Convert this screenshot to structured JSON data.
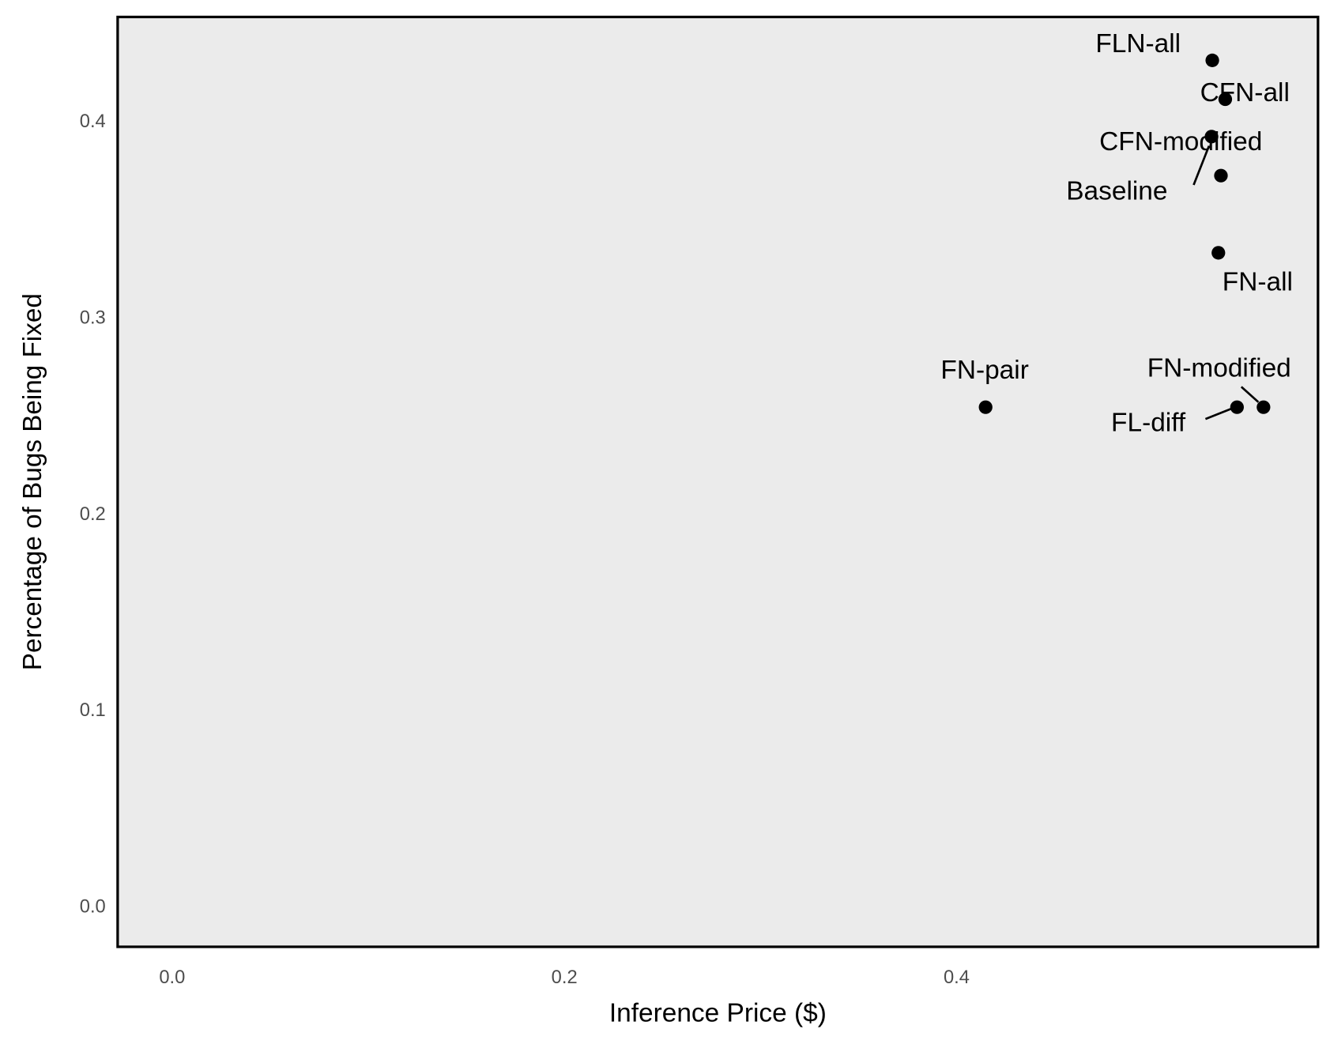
{
  "chart_data": {
    "type": "scatter",
    "x_label": "Inference Price ($)",
    "y_label": "Percentage of Bugs Being Fixed",
    "labels": [
      "FLN-all",
      "CFN-all",
      "CFN-modified",
      "Baseline",
      "FN-all",
      "FN-pair",
      "FL-diff",
      "FN-modified"
    ],
    "x": [
      0.5304,
      0.537,
      0.53,
      0.5348,
      0.5335,
      0.4148,
      0.543,
      0.5565
    ],
    "values": [
      0.4315,
      0.4117,
      0.3927,
      0.3728,
      0.3335,
      0.2549,
      0.2549,
      0.2549
    ],
    "color": "#000000",
    "xlim": [
      -0.0278,
      0.5843
    ],
    "ylim": [
      -0.0199,
      0.4536
    ],
    "xticks": [
      {
        "value": 0,
        "label": "0.0"
      },
      0.2,
      0.4
    ],
    "yticks": [
      {
        "value": 0,
        "label": "0.0"
      },
      0.1,
      0.2,
      0.3,
      0.4
    ],
    "grid": true
  }
}
